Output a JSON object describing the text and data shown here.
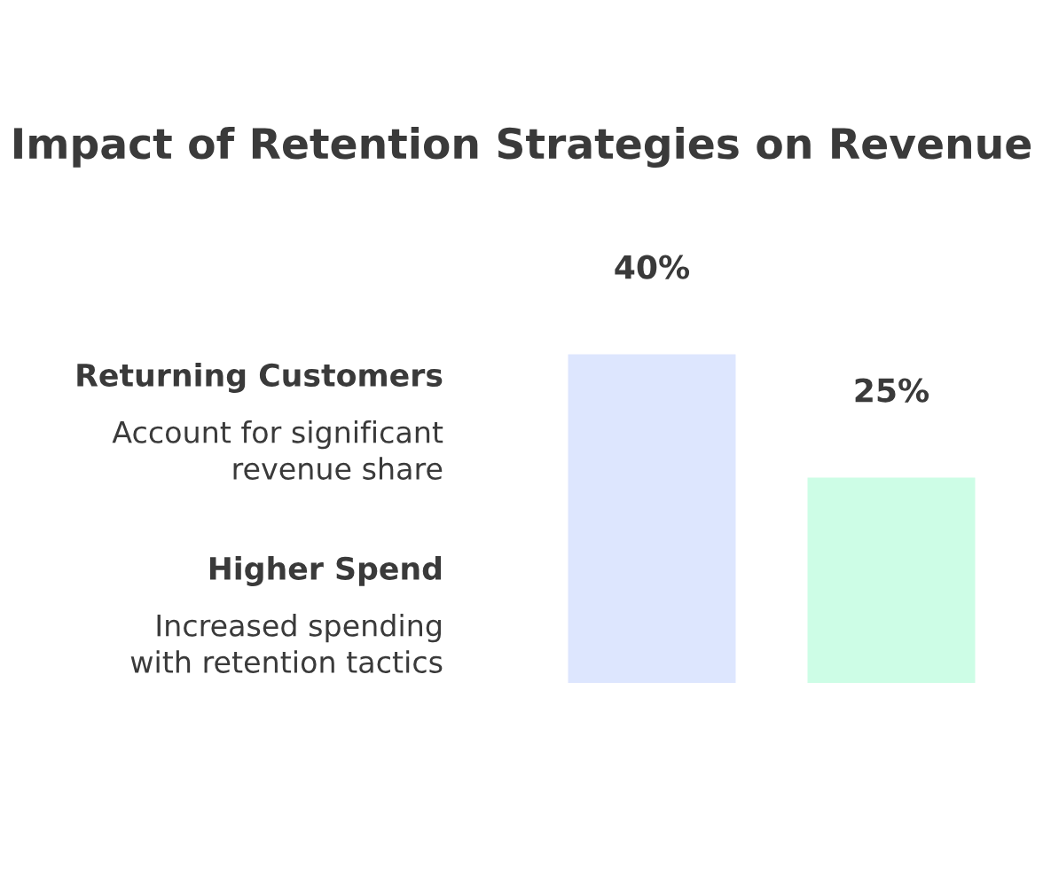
{
  "chart_data": {
    "type": "bar",
    "title": "Impact of Retention Strategies on Revenue",
    "categories": [
      null,
      null
    ],
    "values": [
      40,
      25
    ],
    "colors": [
      "#dde6fe",
      "#cdfde6"
    ],
    "value_labels": [
      "40%",
      "25%"
    ],
    "annotations": [
      "Returning Customers",
      "Account for significant\nrevenue share",
      "Higher Spend",
      "Increased spending\nwith retention tactics"
    ]
  }
}
